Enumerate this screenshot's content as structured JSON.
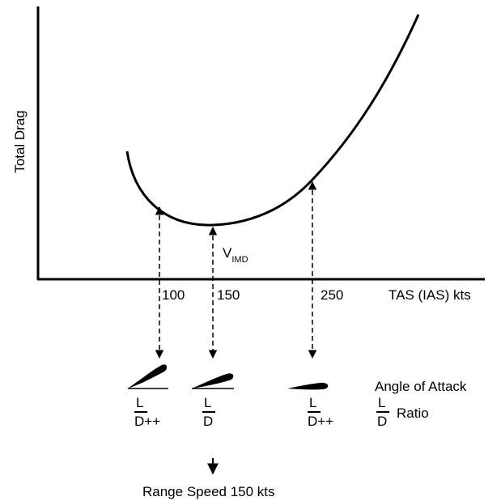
{
  "y_axis_label": "Total Drag",
  "x_axis_label": "TAS (IAS) kts",
  "curve_label": {
    "main": "V",
    "sub": "IMD"
  },
  "speed_markers": [
    100,
    150,
    250
  ],
  "attitude_label": "Angle of Attack",
  "ratios": [
    {
      "numerator": "L",
      "denominator": "D++"
    },
    {
      "numerator": "L",
      "denominator": "D"
    },
    {
      "numerator": "L",
      "denominator": "D++"
    }
  ],
  "ratio_legend": {
    "numerator": "L",
    "denominator": "D",
    "label": "Ratio"
  },
  "result": "Range Speed 150 kts"
}
